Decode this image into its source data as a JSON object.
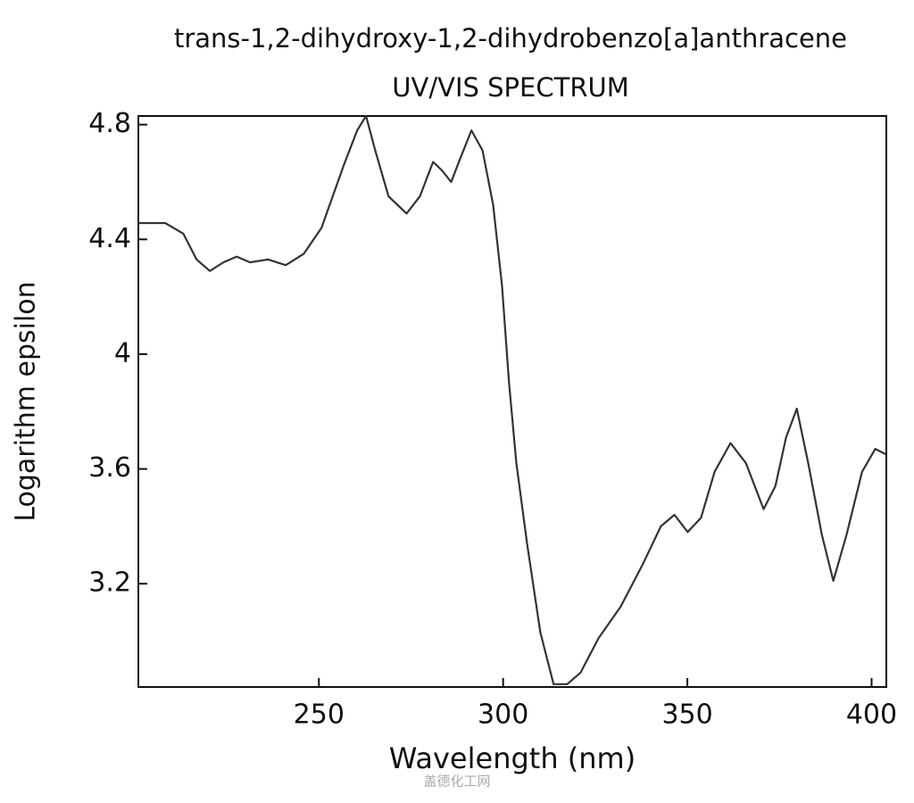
{
  "chart_data": {
    "type": "line",
    "title": "trans-1,2-dihydroxy-1,2-dihydrobenzo[a]anthracene",
    "subtitle": "UV/VIS SPECTRUM",
    "x_label": "Wavelength (nm)",
    "y_label": "Logarithm epsilon",
    "watermark": "盖德化工网",
    "x": [
      201,
      208.3,
      213.2,
      216.8,
      220.4,
      224.1,
      227.7,
      231.3,
      236.2,
      241.0,
      245.9,
      250.7,
      256.8,
      260.4,
      262.8,
      265.3,
      268.9,
      273.8,
      277.4,
      281.0,
      283.4,
      285.9,
      288.3,
      291.4,
      294.4,
      297.3,
      299.7,
      301.6,
      303.6,
      306.5,
      310.1,
      313.7,
      317.4,
      321.0,
      325.9,
      331.9,
      338.0,
      342.8,
      346.5,
      350.1,
      353.7,
      357.4,
      361.7,
      365.9,
      370.7,
      373.9,
      376.8,
      379.7,
      382.8,
      386.5,
      389.6,
      393.2,
      397.4,
      401.0,
      404
    ],
    "series": [
      {
        "color": "#333333",
        "values": [
          4.457,
          4.457,
          4.42,
          4.33,
          4.29,
          4.32,
          4.34,
          4.32,
          4.33,
          4.31,
          4.35,
          4.44,
          4.66,
          4.78,
          4.83,
          4.71,
          4.55,
          4.49,
          4.55,
          4.67,
          4.64,
          4.6,
          4.68,
          4.78,
          4.71,
          4.52,
          4.24,
          3.9,
          3.62,
          3.34,
          3.03,
          2.85,
          2.85,
          2.89,
          3.01,
          3.12,
          3.27,
          3.4,
          3.44,
          3.38,
          3.43,
          3.59,
          3.69,
          3.62,
          3.46,
          3.54,
          3.71,
          3.81,
          3.62,
          3.37,
          3.21,
          3.37,
          3.59,
          3.67,
          3.65
        ]
      }
    ],
    "xlim": [
      201,
      404
    ],
    "ylim": [
      2.84,
      4.83
    ],
    "xticks": [
      250,
      300,
      350,
      400
    ],
    "yticks": [
      3.2,
      3.6,
      4,
      4.4,
      4.8
    ]
  }
}
